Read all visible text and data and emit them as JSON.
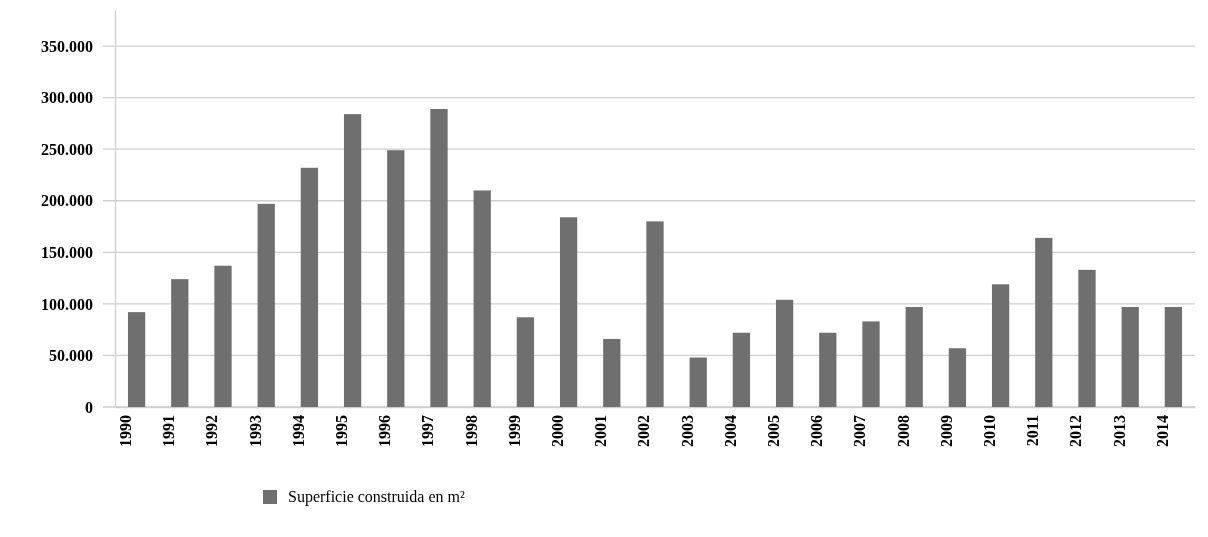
{
  "chart_data": {
    "type": "bar",
    "categories": [
      "1990",
      "1991",
      "1992",
      "1993",
      "1994",
      "1995",
      "1996",
      "1997",
      "1998",
      "1999",
      "2000",
      "2001",
      "2002",
      "2003",
      "2004",
      "2005",
      "2006",
      "2007",
      "2008",
      "2009",
      "2010",
      "2011",
      "2012",
      "2013",
      "2014"
    ],
    "series": [
      {
        "name": "Superficie construida en m²",
        "color": "#6f6f6f",
        "values": [
          92000,
          124000,
          137000,
          197000,
          232000,
          284000,
          249000,
          289000,
          210000,
          87000,
          184000,
          66000,
          180000,
          48000,
          72000,
          104000,
          72000,
          83000,
          97000,
          57000,
          119000,
          164000,
          133000,
          97000,
          97000
        ]
      }
    ],
    "ylim": [
      0,
      385000
    ],
    "yticks": [
      {
        "value": 0,
        "label": "0"
      },
      {
        "value": 50000,
        "label": "50.000"
      },
      {
        "value": 100000,
        "label": "100.000"
      },
      {
        "value": 150000,
        "label": "150.000"
      },
      {
        "value": 200000,
        "label": "200.000"
      },
      {
        "value": 250000,
        "label": "250.000"
      },
      {
        "value": 300000,
        "label": "300.000"
      },
      {
        "value": 350000,
        "label": "350.000"
      }
    ],
    "grid": "y",
    "legend": "bottom"
  }
}
